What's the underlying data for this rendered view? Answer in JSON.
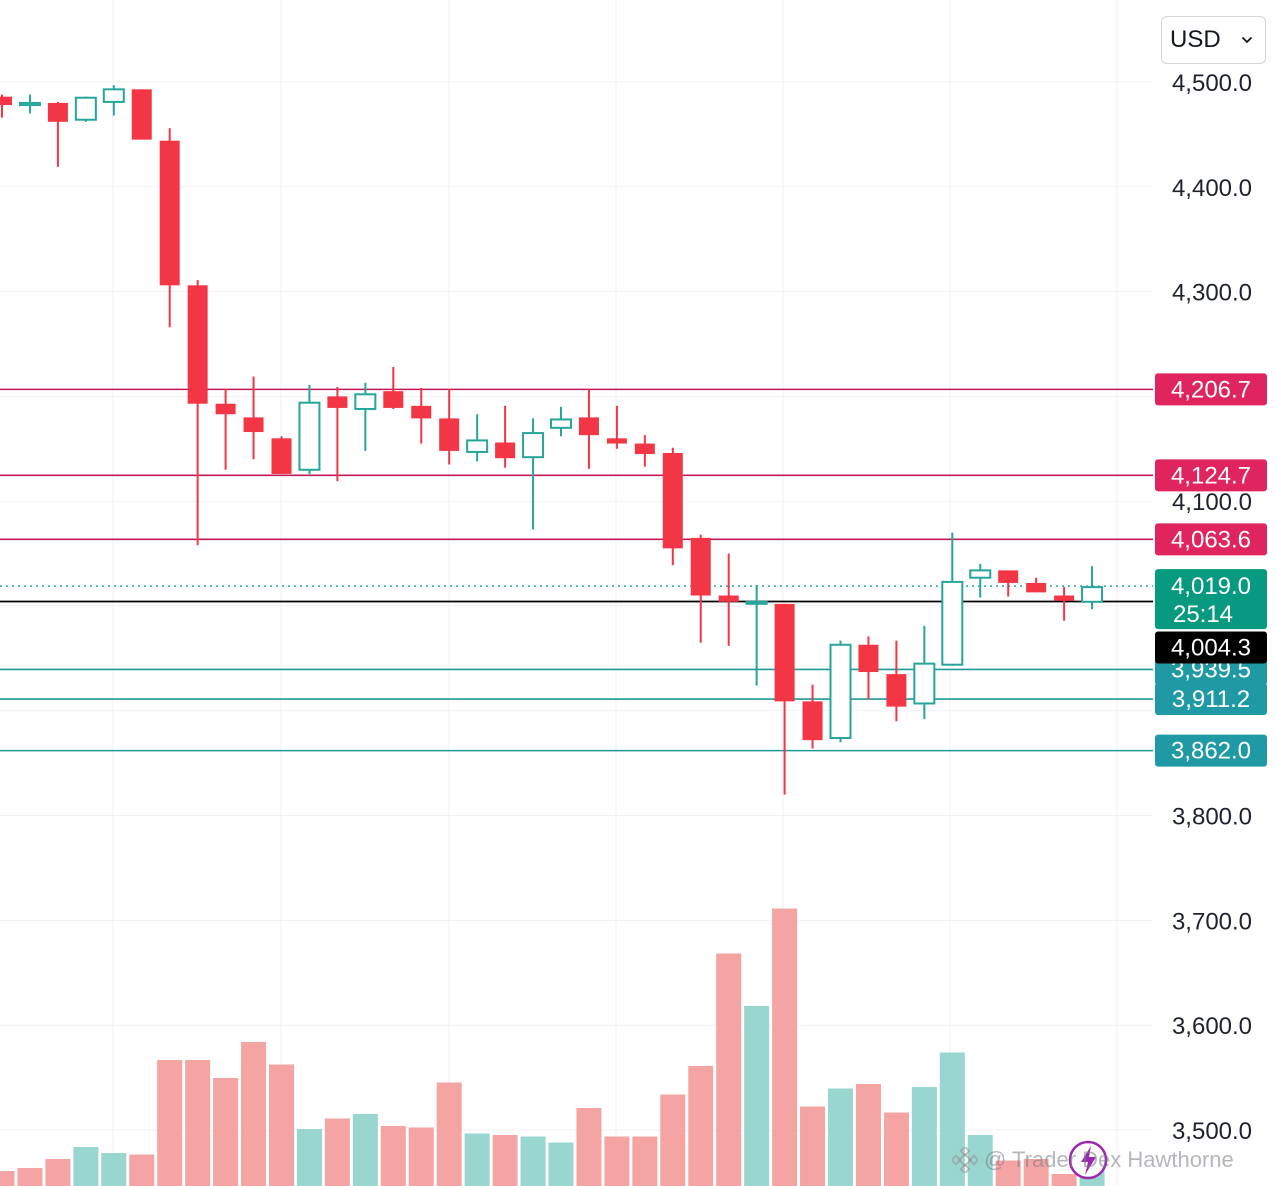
{
  "currency": "USD",
  "watermark": "@ Trader Dex Hawthorne",
  "colors": {
    "up": "#26a69a",
    "down": "#f23645",
    "up_volume": "#98d6cf",
    "down_volume": "#f5a4a4",
    "resistance_line": "#c2185b",
    "resistance_label": "#e0245e",
    "support_line": "#1e9a9a",
    "support_label": "#1f9aa4",
    "last_price_label": "#089981",
    "current_price_label": "#000000",
    "grid": "#f0f1f3",
    "axis_text": "#1e222d"
  },
  "chart_data": {
    "type": "candlestick",
    "ylim": [
      3450,
      4550
    ],
    "y_ticks": [
      4500,
      4400,
      4300,
      4100,
      3800,
      3700,
      3600,
      3500
    ],
    "y_tick_labels": [
      "4,500.0",
      "4,400.0",
      "4,300.0",
      "4,100.0",
      "3,800.0",
      "3,700.0",
      "3,600.0",
      "3,500.0"
    ],
    "candles": [
      {
        "o": 4486,
        "h": 4488,
        "l": 4466,
        "c": 4478
      },
      {
        "o": 4478,
        "h": 4488,
        "l": 4470,
        "c": 4480
      },
      {
        "o": 4480,
        "h": 4481,
        "l": 4419,
        "c": 4462
      },
      {
        "o": 4464,
        "h": 4486,
        "l": 4462,
        "c": 4485
      },
      {
        "o": 4481,
        "h": 4497,
        "l": 4468,
        "c": 4493
      },
      {
        "o": 4493,
        "h": 4493,
        "l": 4445,
        "c": 4445
      },
      {
        "o": 4444,
        "h": 4456,
        "l": 4266,
        "c": 4306
      },
      {
        "o": 4306,
        "h": 4311,
        "l": 4058,
        "c": 4193
      },
      {
        "o": 4193,
        "h": 4207,
        "l": 4130,
        "c": 4183
      },
      {
        "o": 4180,
        "h": 4219,
        "l": 4140,
        "c": 4166
      },
      {
        "o": 4160,
        "h": 4162,
        "l": 4127,
        "c": 4126
      },
      {
        "o": 4130,
        "h": 4211,
        "l": 4126,
        "c": 4194
      },
      {
        "o": 4200,
        "h": 4209,
        "l": 4119,
        "c": 4189
      },
      {
        "o": 4188,
        "h": 4213,
        "l": 4148,
        "c": 4202
      },
      {
        "o": 4205,
        "h": 4228,
        "l": 4188,
        "c": 4189
      },
      {
        "o": 4191,
        "h": 4208,
        "l": 4155,
        "c": 4179
      },
      {
        "o": 4179,
        "h": 4207,
        "l": 4135,
        "c": 4148
      },
      {
        "o": 4147,
        "h": 4183,
        "l": 4138,
        "c": 4158
      },
      {
        "o": 4156,
        "h": 4191,
        "l": 4132,
        "c": 4141
      },
      {
        "o": 4142,
        "h": 4179,
        "l": 4073,
        "c": 4165
      },
      {
        "o": 4170,
        "h": 4190,
        "l": 4162,
        "c": 4178
      },
      {
        "o": 4180,
        "h": 4207,
        "l": 4131,
        "c": 4163
      },
      {
        "o": 4160,
        "h": 4191,
        "l": 4150,
        "c": 4155
      },
      {
        "o": 4155,
        "h": 4163,
        "l": 4133,
        "c": 4145
      },
      {
        "o": 4146,
        "h": 4151,
        "l": 4039,
        "c": 4055
      },
      {
        "o": 4065,
        "h": 4068,
        "l": 3965,
        "c": 4010
      },
      {
        "o": 4010,
        "h": 4050,
        "l": 3962,
        "c": 4004
      },
      {
        "o": 4004,
        "h": 4020,
        "l": 3924,
        "c": 4004
      },
      {
        "o": 4002,
        "h": 4002,
        "l": 3820,
        "c": 3909
      },
      {
        "o": 3909,
        "h": 3925,
        "l": 3864,
        "c": 3872
      },
      {
        "o": 3874,
        "h": 3967,
        "l": 3870,
        "c": 3963
      },
      {
        "o": 3963,
        "h": 3971,
        "l": 3911,
        "c": 3937
      },
      {
        "o": 3935,
        "h": 3967,
        "l": 3890,
        "c": 3904
      },
      {
        "o": 3907,
        "h": 3981,
        "l": 3892,
        "c": 3945
      },
      {
        "o": 3944,
        "h": 4070,
        "l": 3943,
        "c": 4023
      },
      {
        "o": 4027,
        "h": 4040,
        "l": 4008,
        "c": 4034
      },
      {
        "o": 4034,
        "h": 4034,
        "l": 4009,
        "c": 4022
      },
      {
        "o": 4022,
        "h": 4027,
        "l": 4013,
        "c": 4013
      },
      {
        "o": 4010,
        "h": 4018,
        "l": 3986,
        "c": 4005
      },
      {
        "o": 4004,
        "h": 4038,
        "l": 3997,
        "c": 4018
      }
    ],
    "volume_max": 1000,
    "volumes": [
      50,
      60,
      90,
      130,
      110,
      105,
      420,
      420,
      360,
      480,
      405,
      190,
      225,
      240,
      200,
      195,
      345,
      175,
      170,
      165,
      145,
      260,
      165,
      165,
      305,
      400,
      775,
      600,
      925,
      265,
      325,
      340,
      245,
      330,
      445,
      170,
      85,
      90,
      40,
      95
    ],
    "volume_up": [
      false,
      false,
      false,
      true,
      true,
      false,
      false,
      false,
      false,
      false,
      false,
      true,
      false,
      true,
      false,
      false,
      false,
      true,
      false,
      true,
      true,
      false,
      false,
      false,
      false,
      false,
      false,
      true,
      false,
      false,
      true,
      false,
      false,
      true,
      true,
      true,
      false,
      false,
      false,
      true
    ],
    "hlines": [
      {
        "value": 4206.7,
        "label": "4,206.7",
        "kind": "resistance"
      },
      {
        "value": 4124.7,
        "label": "4,124.7",
        "kind": "resistance"
      },
      {
        "value": 4063.6,
        "label": "4,063.6",
        "kind": "resistance"
      },
      {
        "value": 3939.5,
        "label": "3,939.5",
        "kind": "support"
      },
      {
        "value": 3911.2,
        "label": "3,911.2",
        "kind": "support"
      },
      {
        "value": 3862.0,
        "label": "3,862.0",
        "kind": "support"
      }
    ],
    "last_price": {
      "value": 4019.0,
      "label": "4,019.0",
      "countdown": "25:14"
    },
    "current_price": {
      "value": 4004.3,
      "label": "4,004.3"
    }
  }
}
